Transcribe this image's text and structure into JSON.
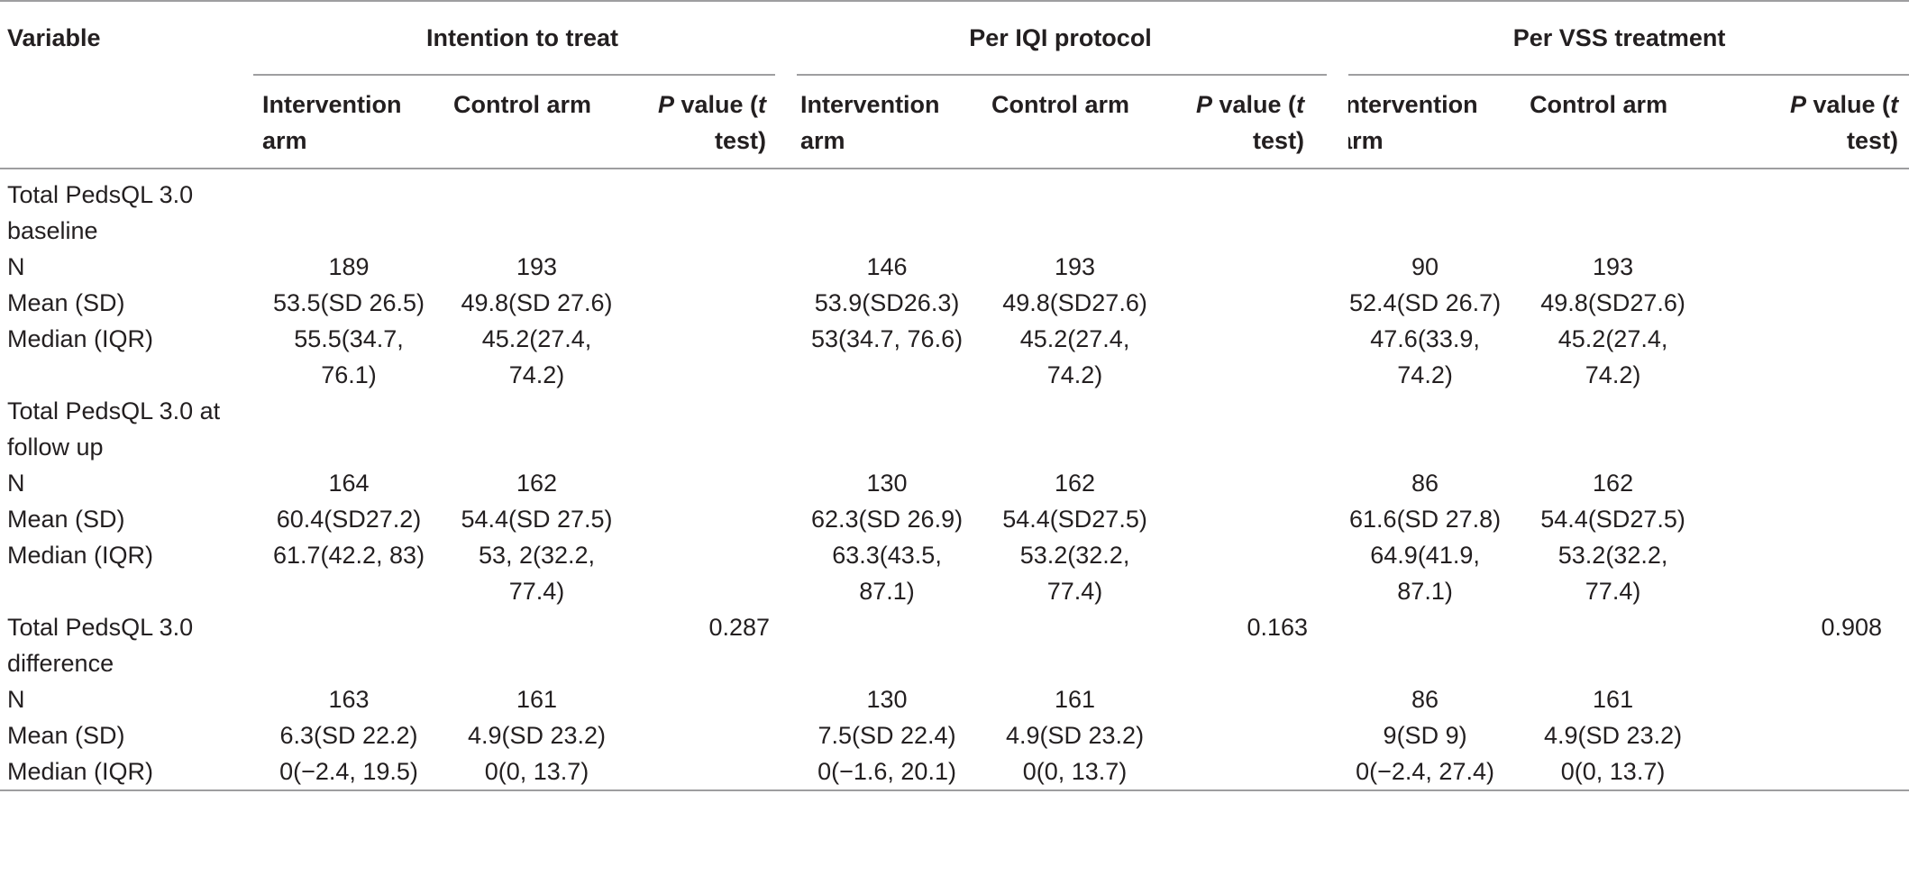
{
  "header": {
    "variable": "Variable",
    "groups": [
      "Intention to treat",
      "Per IQI protocol",
      "Per VSS treatment"
    ],
    "subcols": {
      "intervention": [
        "Intervention",
        "arm"
      ],
      "control": "Control arm",
      "pvalue_p": "P",
      "pvalue_rest1": " value (",
      "pvalue_t": "t",
      "pvalue_rest2": "test)"
    }
  },
  "sections": [
    {
      "title": [
        "Total PedsQL 3.0",
        "baseline"
      ],
      "pvalues": [
        "",
        "",
        ""
      ],
      "rows": [
        {
          "label": "N",
          "values": [
            [
              "189"
            ],
            [
              "193"
            ],
            [
              "146"
            ],
            [
              "193"
            ],
            [
              "90"
            ],
            [
              "193"
            ]
          ]
        },
        {
          "label": "Mean (SD)",
          "values": [
            [
              "53.5(SD 26.5)"
            ],
            [
              "49.8(SD 27.6)"
            ],
            [
              "53.9(SD26.3)"
            ],
            [
              "49.8(SD27.6)"
            ],
            [
              "52.4(SD 26.7)"
            ],
            [
              "49.8(SD27.6)"
            ]
          ]
        },
        {
          "label": "Median (IQR)",
          "values": [
            [
              "55.5(34.7,",
              "76.1)"
            ],
            [
              "45.2(27.4,",
              "74.2)"
            ],
            [
              "53(34.7, 76.6)"
            ],
            [
              "45.2(27.4,",
              "74.2)"
            ],
            [
              "47.6(33.9,",
              "74.2)"
            ],
            [
              "45.2(27.4,",
              "74.2)"
            ]
          ]
        }
      ]
    },
    {
      "title": [
        "Total PedsQL 3.0 at",
        "follow up"
      ],
      "pvalues": [
        "",
        "",
        ""
      ],
      "rows": [
        {
          "label": "N",
          "values": [
            [
              "164"
            ],
            [
              "162"
            ],
            [
              "130"
            ],
            [
              "162"
            ],
            [
              "86"
            ],
            [
              "162"
            ]
          ]
        },
        {
          "label": "Mean (SD)",
          "values": [
            [
              "60.4(SD27.2)"
            ],
            [
              "54.4(SD 27.5)"
            ],
            [
              "62.3(SD 26.9)"
            ],
            [
              "54.4(SD27.5)"
            ],
            [
              "61.6(SD 27.8)"
            ],
            [
              "54.4(SD27.5)"
            ]
          ]
        },
        {
          "label": "Median (IQR)",
          "values": [
            [
              "61.7(42.2, 83)"
            ],
            [
              "53, 2(32.2,",
              "77.4)"
            ],
            [
              "63.3(43.5,",
              "87.1)"
            ],
            [
              "53.2(32.2,",
              "77.4)"
            ],
            [
              "64.9(41.9,",
              "87.1)"
            ],
            [
              "53.2(32.2,",
              "77.4)"
            ]
          ]
        }
      ]
    },
    {
      "title": [
        "Total PedsQL 3.0",
        "difference"
      ],
      "pvalues": [
        "0.287",
        "0.163",
        "0.908"
      ],
      "rows": [
        {
          "label": "N",
          "values": [
            [
              "163"
            ],
            [
              "161"
            ],
            [
              "130"
            ],
            [
              "161"
            ],
            [
              "86"
            ],
            [
              "161"
            ]
          ]
        },
        {
          "label": "Mean (SD)",
          "values": [
            [
              "6.3(SD 22.2)"
            ],
            [
              "4.9(SD 23.2)"
            ],
            [
              "7.5(SD 22.4)"
            ],
            [
              "4.9(SD 23.2)"
            ],
            [
              "9(SD 9)"
            ],
            [
              "4.9(SD 23.2)"
            ]
          ]
        },
        {
          "label": "Median (IQR)",
          "values": [
            [
              "0(−2.4, 19.5)"
            ],
            [
              "0(0, 13.7)"
            ],
            [
              "0(−1.6, 20.1)"
            ],
            [
              "0(0, 13.7)"
            ],
            [
              "0(−2.4, 27.4)"
            ],
            [
              "0(0, 13.7)"
            ]
          ]
        }
      ]
    }
  ]
}
